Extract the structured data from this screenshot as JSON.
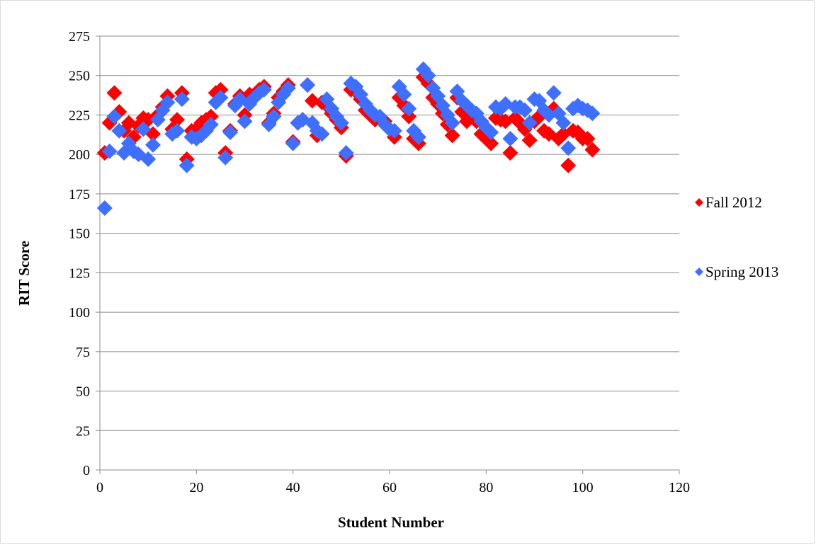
{
  "chart_data": {
    "type": "scatter",
    "title": "",
    "xlabel": "Student Number",
    "ylabel": "RIT Score",
    "xlim": [
      0,
      120
    ],
    "ylim": [
      0,
      275
    ],
    "x_ticks": [
      0,
      20,
      40,
      60,
      80,
      100,
      120
    ],
    "y_ticks": [
      0,
      25,
      50,
      75,
      100,
      125,
      150,
      175,
      200,
      225,
      250,
      275
    ],
    "grid": "horizontal",
    "legend_position": "right",
    "series": [
      {
        "name": "Fall 2012",
        "color": "#ff0000",
        "marker": "diamond",
        "x": [
          1,
          2,
          3,
          4,
          5,
          6,
          7,
          8,
          9,
          10,
          11,
          12,
          13,
          14,
          15,
          16,
          17,
          18,
          19,
          20,
          21,
          22,
          23,
          24,
          25,
          26,
          27,
          28,
          29,
          30,
          31,
          32,
          33,
          34,
          35,
          36,
          37,
          38,
          39,
          40,
          41,
          42,
          43,
          44,
          45,
          46,
          47,
          48,
          49,
          50,
          51,
          52,
          53,
          54,
          55,
          56,
          57,
          58,
          59,
          60,
          61,
          62,
          63,
          64,
          65,
          66,
          67,
          68,
          69,
          70,
          71,
          72,
          73,
          74,
          75,
          76,
          77,
          78,
          79,
          80,
          81,
          82,
          83,
          84,
          85,
          86,
          87,
          88,
          89,
          90,
          91,
          92,
          93,
          94,
          95,
          96,
          97,
          98,
          99,
          100,
          101,
          102
        ],
        "y": [
          201,
          220,
          239,
          227,
          215,
          220,
          211,
          218,
          223,
          222,
          213,
          225,
          230,
          237,
          216,
          222,
          239,
          197,
          215,
          216,
          220,
          222,
          224,
          239,
          241,
          201,
          215,
          232,
          237,
          225,
          238,
          238,
          241,
          243,
          220,
          226,
          236,
          240,
          244,
          208,
          220,
          222,
          244,
          234,
          212,
          233,
          231,
          226,
          222,
          217,
          199,
          241,
          240,
          235,
          228,
          225,
          222,
          223,
          221,
          216,
          211,
          236,
          231,
          224,
          210,
          207,
          249,
          245,
          236,
          232,
          226,
          219,
          212,
          236,
          227,
          221,
          227,
          221,
          213,
          210,
          207,
          223,
          222,
          221,
          201,
          223,
          220,
          216,
          209,
          221,
          224,
          215,
          213,
          229,
          210,
          213,
          193,
          215,
          214,
          210,
          210,
          203
        ]
      },
      {
        "name": "Spring 2013",
        "color": "#3f6fff",
        "marker": "diamond",
        "x": [
          1,
          2,
          3,
          4,
          5,
          6,
          7,
          8,
          9,
          10,
          11,
          12,
          13,
          14,
          15,
          16,
          17,
          18,
          19,
          20,
          21,
          22,
          23,
          24,
          25,
          26,
          27,
          28,
          29,
          30,
          31,
          32,
          33,
          34,
          35,
          36,
          37,
          38,
          39,
          40,
          41,
          42,
          43,
          44,
          45,
          46,
          47,
          48,
          49,
          50,
          51,
          52,
          53,
          54,
          55,
          56,
          57,
          58,
          59,
          60,
          61,
          62,
          63,
          64,
          65,
          66,
          67,
          68,
          69,
          70,
          71,
          72,
          73,
          74,
          75,
          76,
          77,
          78,
          79,
          80,
          81,
          82,
          83,
          84,
          85,
          86,
          87,
          88,
          89,
          90,
          91,
          92,
          93,
          94,
          95,
          96,
          97,
          98,
          99,
          100,
          101,
          102
        ],
        "y": [
          166,
          202,
          224,
          215,
          201,
          207,
          202,
          200,
          216,
          197,
          206,
          222,
          228,
          233,
          213,
          215,
          235,
          193,
          211,
          210,
          212,
          215,
          219,
          233,
          236,
          198,
          214,
          231,
          235,
          221,
          232,
          236,
          239,
          241,
          219,
          224,
          233,
          238,
          242,
          207,
          220,
          222,
          244,
          220,
          215,
          213,
          235,
          229,
          224,
          220,
          201,
          245,
          243,
          238,
          232,
          228,
          225,
          224,
          219,
          216,
          215,
          243,
          238,
          229,
          215,
          211,
          254,
          250,
          242,
          237,
          231,
          225,
          220,
          240,
          234,
          231,
          228,
          226,
          221,
          217,
          214,
          230,
          229,
          232,
          210,
          230,
          230,
          228,
          220,
          235,
          234,
          228,
          225,
          239,
          226,
          220,
          204,
          229,
          231,
          229,
          228,
          226
        ]
      }
    ]
  }
}
